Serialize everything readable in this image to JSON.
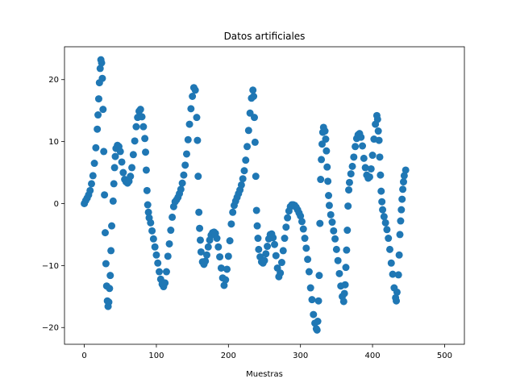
{
  "chart_data": {
    "type": "scatter",
    "title": "Datos artificiales",
    "xlabel": "Muestras",
    "ylabel": "",
    "xlim": [
      -27.5,
      527.5
    ],
    "ylim": [
      -22.7,
      25.3
    ],
    "xticks": [
      0,
      100,
      200,
      300,
      400,
      500
    ],
    "yticks": [
      -20,
      -10,
      0,
      10,
      20
    ],
    "grid": false,
    "legend": false,
    "color": "#1f77b4",
    "series": [
      {
        "points": [
          [
            0,
            0
          ],
          [
            2,
            0.5
          ],
          [
            4,
            0.9
          ],
          [
            6,
            1.4
          ],
          [
            8,
            2.1
          ],
          [
            10,
            3.2
          ],
          [
            12,
            4.5
          ],
          [
            14,
            6.5
          ],
          [
            16,
            9
          ],
          [
            18,
            12
          ],
          [
            19,
            14.3
          ],
          [
            20,
            16.9
          ],
          [
            21,
            19.5
          ],
          [
            22,
            21.8
          ],
          [
            23,
            23.2
          ],
          [
            24,
            22.7
          ],
          [
            25,
            20.2
          ],
          [
            26,
            15.2
          ],
          [
            27,
            8.4
          ],
          [
            28,
            1.4
          ],
          [
            29,
            -4.7
          ],
          [
            30,
            -9.7
          ],
          [
            31,
            -13.3
          ],
          [
            32,
            -15.7
          ],
          [
            33,
            -16.6
          ],
          [
            34,
            -15.9
          ],
          [
            35,
            -13.7
          ],
          [
            36,
            -11.6
          ],
          [
            37,
            -7.6
          ],
          [
            38,
            -3.6
          ],
          [
            40,
            0.4
          ],
          [
            41,
            3.2
          ],
          [
            42,
            5.8
          ],
          [
            43,
            7.6
          ],
          [
            44,
            8.9
          ],
          [
            46,
            9.4
          ],
          [
            48,
            9.2
          ],
          [
            50,
            8.4
          ],
          [
            52,
            6.7
          ],
          [
            54,
            5
          ],
          [
            56,
            3.9
          ],
          [
            58,
            3.5
          ],
          [
            60,
            3.3
          ],
          [
            62,
            3.6
          ],
          [
            64,
            4.4
          ],
          [
            66,
            5.8
          ],
          [
            68,
            7.9
          ],
          [
            70,
            10.1
          ],
          [
            72,
            12.4
          ],
          [
            74,
            13.9
          ],
          [
            76,
            14.9
          ],
          [
            78,
            15.2
          ],
          [
            80,
            14
          ],
          [
            82,
            12.4
          ],
          [
            84,
            10.5
          ],
          [
            85,
            8.3
          ],
          [
            86,
            5.4
          ],
          [
            87,
            2.1
          ],
          [
            88,
            -0.2
          ],
          [
            89,
            -1.4
          ],
          [
            90,
            -2.3
          ],
          [
            92,
            -3.1
          ],
          [
            94,
            -4.4
          ],
          [
            96,
            -5.7
          ],
          [
            98,
            -7
          ],
          [
            100,
            -8.3
          ],
          [
            102,
            -9.6
          ],
          [
            104,
            -11
          ],
          [
            106,
            -12.2
          ],
          [
            108,
            -13
          ],
          [
            110,
            -13.4
          ],
          [
            112,
            -12.8
          ],
          [
            114,
            -11
          ],
          [
            116,
            -8.5
          ],
          [
            118,
            -6.5
          ],
          [
            120,
            -4.3
          ],
          [
            122,
            -2.2
          ],
          [
            124,
            -0.5
          ],
          [
            126,
            0.3
          ],
          [
            128,
            0.6
          ],
          [
            130,
            1
          ],
          [
            132,
            1.6
          ],
          [
            134,
            2.3
          ],
          [
            136,
            3.3
          ],
          [
            138,
            4.6
          ],
          [
            140,
            6.2
          ],
          [
            142,
            8
          ],
          [
            144,
            10.3
          ],
          [
            146,
            12.8
          ],
          [
            148,
            15.3
          ],
          [
            150,
            17.3
          ],
          [
            152,
            18.7
          ],
          [
            154,
            18.3
          ],
          [
            156,
            13.9
          ],
          [
            157,
            10.2
          ],
          [
            158,
            4.4
          ],
          [
            159,
            -1.4
          ],
          [
            160,
            -4
          ],
          [
            161,
            -5.9
          ],
          [
            162,
            -7.8
          ],
          [
            164,
            -9.4
          ],
          [
            166,
            -9.8
          ],
          [
            168,
            -9.3
          ],
          [
            170,
            -8.3
          ],
          [
            172,
            -7
          ],
          [
            174,
            -5.9
          ],
          [
            176,
            -5.1
          ],
          [
            178,
            -4.7
          ],
          [
            180,
            -4.6
          ],
          [
            182,
            -4.8
          ],
          [
            184,
            -5.6
          ],
          [
            186,
            -7
          ],
          [
            188,
            -8.6
          ],
          [
            190,
            -10.4
          ],
          [
            192,
            -12
          ],
          [
            194,
            -13.2
          ],
          [
            196,
            -12.3
          ],
          [
            198,
            -10.6
          ],
          [
            200,
            -8.5
          ],
          [
            202,
            -6
          ],
          [
            204,
            -3.3
          ],
          [
            206,
            -1.4
          ],
          [
            208,
            -0.3
          ],
          [
            210,
            0.4
          ],
          [
            212,
            1
          ],
          [
            214,
            1.6
          ],
          [
            216,
            2.2
          ],
          [
            218,
            3
          ],
          [
            220,
            4
          ],
          [
            222,
            5.3
          ],
          [
            224,
            7
          ],
          [
            226,
            9.2
          ],
          [
            228,
            11.8
          ],
          [
            230,
            14.6
          ],
          [
            232,
            17
          ],
          [
            234,
            18.3
          ],
          [
            235,
            17.3
          ],
          [
            236,
            13.9
          ],
          [
            237,
            9.9
          ],
          [
            238,
            4.4
          ],
          [
            239,
            -1.1
          ],
          [
            240,
            -3.6
          ],
          [
            241,
            -5.6
          ],
          [
            242,
            -7.4
          ],
          [
            244,
            -8.6
          ],
          [
            246,
            -9.4
          ],
          [
            248,
            -9.6
          ],
          [
            250,
            -9.2
          ],
          [
            252,
            -8.1
          ],
          [
            254,
            -6.9
          ],
          [
            256,
            -5.7
          ],
          [
            258,
            -5
          ],
          [
            260,
            -4.9
          ],
          [
            262,
            -5.5
          ],
          [
            264,
            -6.6
          ],
          [
            266,
            -8.4
          ],
          [
            268,
            -10.4
          ],
          [
            270,
            -11.8
          ],
          [
            272,
            -11.2
          ],
          [
            274,
            -9.5
          ],
          [
            276,
            -7.6
          ],
          [
            278,
            -5.6
          ],
          [
            280,
            -3.8
          ],
          [
            282,
            -2.3
          ],
          [
            284,
            -1.2
          ],
          [
            286,
            -0.5
          ],
          [
            288,
            -0.2
          ],
          [
            290,
            -0.2
          ],
          [
            292,
            -0.3
          ],
          [
            294,
            -0.6
          ],
          [
            296,
            -1
          ],
          [
            298,
            -1.5
          ],
          [
            300,
            -2
          ],
          [
            302,
            -2.9
          ],
          [
            304,
            -4.1
          ],
          [
            306,
            -5.6
          ],
          [
            308,
            -7.2
          ],
          [
            310,
            -9
          ],
          [
            312,
            -11
          ],
          [
            314,
            -13.6
          ],
          [
            316,
            -15.5
          ],
          [
            318,
            -17.9
          ],
          [
            320,
            -19.3
          ],
          [
            322,
            -20.2
          ],
          [
            323,
            -20.4
          ],
          [
            324,
            -19
          ],
          [
            325,
            -15.7
          ],
          [
            326,
            -11.6
          ],
          [
            327,
            -3.2
          ],
          [
            328,
            3.9
          ],
          [
            329,
            7.1
          ],
          [
            330,
            9.6
          ],
          [
            331,
            11.5
          ],
          [
            332,
            12.3
          ],
          [
            334,
            11.7
          ],
          [
            335,
            10.4
          ],
          [
            336,
            8.5
          ],
          [
            337,
            5.9
          ],
          [
            338,
            3.6
          ],
          [
            339,
            1.3
          ],
          [
            340,
            -0.3
          ],
          [
            342,
            -1.8
          ],
          [
            344,
            -3
          ],
          [
            346,
            -4.4
          ],
          [
            348,
            -5.7
          ],
          [
            350,
            -7.4
          ],
          [
            352,
            -9.2
          ],
          [
            354,
            -11.3
          ],
          [
            356,
            -13.3
          ],
          [
            358,
            -15
          ],
          [
            360,
            -15.8
          ],
          [
            361,
            -14.5
          ],
          [
            362,
            -13.1
          ],
          [
            363,
            -10.3
          ],
          [
            364,
            -7.5
          ],
          [
            365,
            -4.3
          ],
          [
            366,
            -0.4
          ],
          [
            367,
            2.2
          ],
          [
            368,
            3.4
          ],
          [
            370,
            4.8
          ],
          [
            372,
            6
          ],
          [
            374,
            7.5
          ],
          [
            376,
            9.2
          ],
          [
            378,
            10.5
          ],
          [
            380,
            11.1
          ],
          [
            382,
            11.3
          ],
          [
            384,
            10.7
          ],
          [
            386,
            9.3
          ],
          [
            388,
            7.3
          ],
          [
            390,
            5.8
          ],
          [
            392,
            4.6
          ],
          [
            394,
            4.1
          ],
          [
            396,
            4.3
          ],
          [
            398,
            5.6
          ],
          [
            400,
            7.8
          ],
          [
            402,
            10.4
          ],
          [
            404,
            12.8
          ],
          [
            406,
            14.2
          ],
          [
            407,
            13.6
          ],
          [
            408,
            11.7
          ],
          [
            409,
            10.2
          ],
          [
            410,
            7.5
          ],
          [
            411,
            4.6
          ],
          [
            412,
            2
          ],
          [
            413,
            0.3
          ],
          [
            414,
            -1
          ],
          [
            416,
            -2.1
          ],
          [
            418,
            -3.1
          ],
          [
            420,
            -4.2
          ],
          [
            422,
            -5.6
          ],
          [
            424,
            -7.4
          ],
          [
            426,
            -9.6
          ],
          [
            428,
            -11.4
          ],
          [
            430,
            -13.6
          ],
          [
            432,
            -15.2
          ],
          [
            433,
            -15.7
          ],
          [
            434,
            -14.3
          ],
          [
            436,
            -11.5
          ],
          [
            437,
            -8.3
          ],
          [
            438,
            -5
          ],
          [
            439,
            -2.8
          ],
          [
            440,
            -1
          ],
          [
            441,
            0.7
          ],
          [
            442,
            2.3
          ],
          [
            443,
            3.5
          ],
          [
            444,
            4.5
          ],
          [
            446,
            5.4
          ]
        ]
      }
    ]
  }
}
